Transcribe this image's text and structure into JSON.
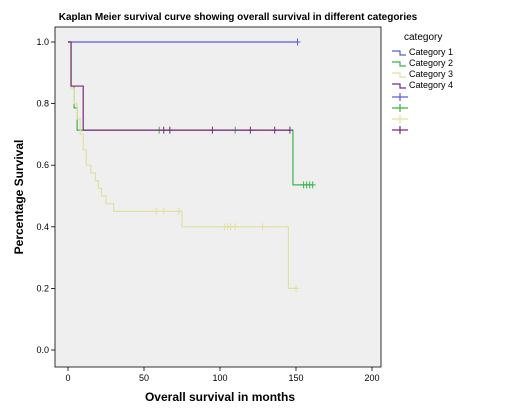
{
  "chart_data": {
    "type": "line",
    "title": "Kaplan Meier survival curve showing overall survival in different categories",
    "xlabel": "Overall survival in months",
    "ylabel": "Percentage Survival",
    "xlim": [
      0,
      200
    ],
    "ylim": [
      0.0,
      1.0
    ],
    "x_ticks": [
      "0",
      "50",
      "100",
      "150",
      "200"
    ],
    "y_ticks": [
      "0.0",
      "0.2",
      "0.4",
      "0.6",
      "0.8",
      "1.0"
    ],
    "grid": false,
    "legend_title": "category",
    "legend_position": "right",
    "series": [
      {
        "name": "Category 1",
        "color": "#5b5bd6",
        "steps": [
          [
            0,
            1.0
          ],
          [
            151,
            1.0
          ]
        ],
        "censored": [
          [
            151,
            1.0
          ]
        ]
      },
      {
        "name": "Category 2",
        "color": "#3cb44b",
        "steps": [
          [
            0,
            1.0
          ],
          [
            2,
            0.857
          ],
          [
            4,
            0.786
          ],
          [
            6,
            0.714
          ],
          [
            148,
            0.714
          ],
          [
            148,
            0.536
          ],
          [
            161,
            0.536
          ]
        ],
        "censored": [
          [
            60,
            0.714
          ],
          [
            110,
            0.714
          ],
          [
            155,
            0.536
          ],
          [
            157,
            0.536
          ],
          [
            159,
            0.536
          ],
          [
            161,
            0.536
          ]
        ]
      },
      {
        "name": "Category 3",
        "color": "#e0e0a0",
        "steps": [
          [
            0,
            1.0
          ],
          [
            2,
            0.85
          ],
          [
            4,
            0.8
          ],
          [
            6,
            0.75
          ],
          [
            8,
            0.7
          ],
          [
            10,
            0.65
          ],
          [
            12,
            0.6
          ],
          [
            15,
            0.575
          ],
          [
            18,
            0.55
          ],
          [
            20,
            0.525
          ],
          [
            22,
            0.5
          ],
          [
            25,
            0.475
          ],
          [
            30,
            0.45
          ],
          [
            75,
            0.45
          ],
          [
            75,
            0.4
          ],
          [
            145,
            0.4
          ],
          [
            145,
            0.2
          ],
          [
            150,
            0.2
          ]
        ],
        "censored": [
          [
            58,
            0.45
          ],
          [
            63,
            0.45
          ],
          [
            73,
            0.45
          ],
          [
            103,
            0.4
          ],
          [
            105,
            0.4
          ],
          [
            107,
            0.4
          ],
          [
            110,
            0.4
          ],
          [
            128,
            0.4
          ],
          [
            150,
            0.2
          ]
        ]
      },
      {
        "name": "Category 4",
        "color": "#7a2a7a",
        "steps": [
          [
            0,
            1.0
          ],
          [
            2,
            0.857
          ],
          [
            10,
            0.857
          ],
          [
            10,
            0.714
          ],
          [
            146,
            0.714
          ]
        ],
        "censored": [
          [
            63,
            0.714
          ],
          [
            67,
            0.714
          ],
          [
            95,
            0.714
          ],
          [
            120,
            0.714
          ],
          [
            136,
            0.714
          ],
          [
            146,
            0.714
          ]
        ]
      }
    ],
    "legend_censored_marks": 4
  }
}
